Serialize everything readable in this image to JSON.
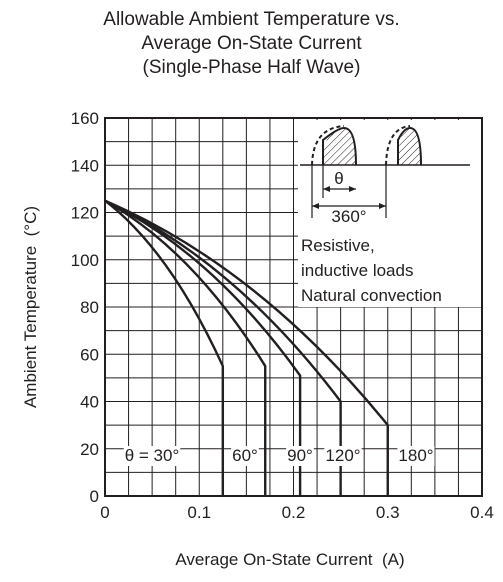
{
  "chart_data": {
    "type": "line",
    "title_lines": [
      "Allowable Ambient Temperature vs.",
      "Average On-State Current",
      "(Single-Phase Half Wave)"
    ],
    "xlabel": "Average On-State Current  (A)",
    "ylabel": "Ambient Temperature  (°C)",
    "xlim": [
      0,
      0.4
    ],
    "ylim": [
      0,
      160
    ],
    "x_ticks": [
      "0",
      "0.1",
      "0.2",
      "0.3",
      "0.4"
    ],
    "y_ticks": [
      "0",
      "20",
      "40",
      "60",
      "80",
      "100",
      "120",
      "140",
      "160"
    ],
    "grid": true,
    "series": [
      {
        "name": "θ = 30°",
        "points": [
          [
            0,
            125
          ],
          [
            0.125,
            55
          ],
          [
            0.125,
            0
          ]
        ]
      },
      {
        "name": "60°",
        "points": [
          [
            0,
            125
          ],
          [
            0.17,
            55
          ],
          [
            0.17,
            0
          ]
        ]
      },
      {
        "name": "90°",
        "points": [
          [
            0,
            125
          ],
          [
            0.207,
            51
          ],
          [
            0.207,
            0
          ]
        ]
      },
      {
        "name": "120°",
        "points": [
          [
            0,
            125
          ],
          [
            0.25,
            40
          ],
          [
            0.25,
            0
          ]
        ]
      },
      {
        "name": "180°",
        "points": [
          [
            0,
            125
          ],
          [
            0.3,
            30
          ],
          [
            0.3,
            0
          ]
        ]
      }
    ],
    "annotations": {
      "theta_symbol": "θ",
      "period_label": "360°",
      "notes": [
        "Resistive,",
        "inductive loads",
        "Natural convection"
      ]
    }
  }
}
